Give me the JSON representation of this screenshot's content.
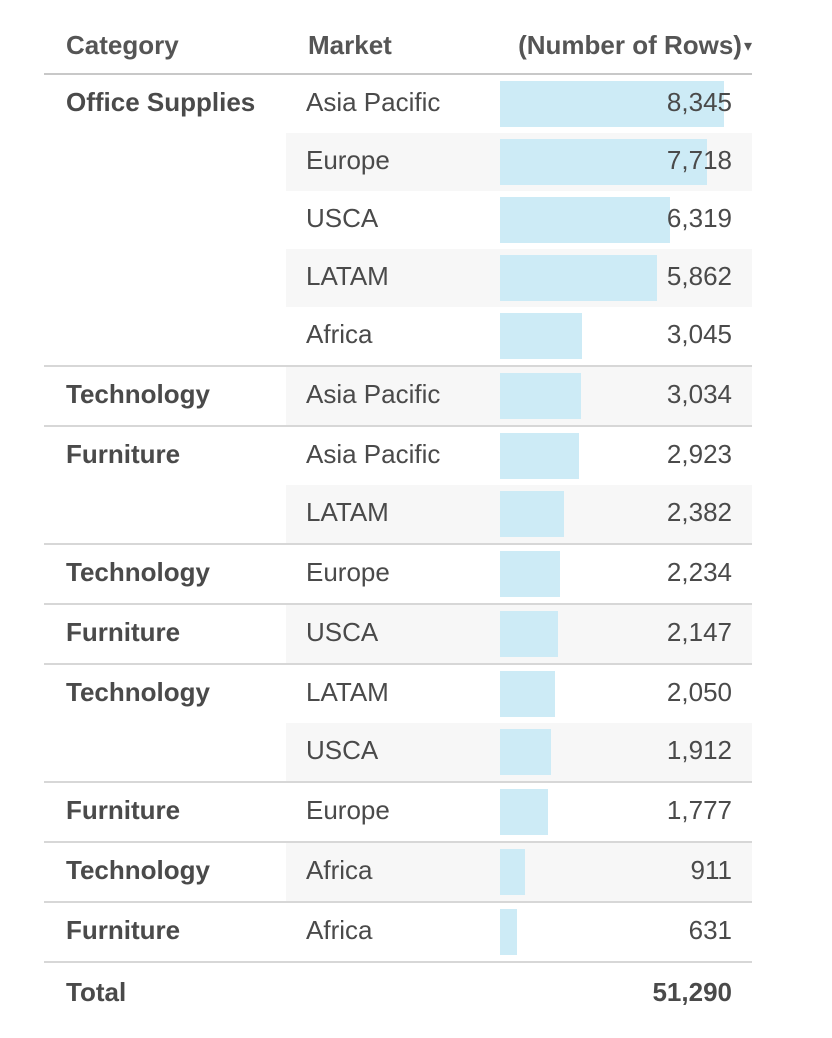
{
  "chart_data": {
    "type": "table",
    "columns": [
      "Category",
      "Market",
      "(Number of Rows)"
    ],
    "sort": "descending",
    "groups": [
      {
        "category": "Office Supplies",
        "rows": [
          {
            "market": "Asia Pacific",
            "value": 8345,
            "label": "8,345"
          },
          {
            "market": "Europe",
            "value": 7718,
            "label": "7,718"
          },
          {
            "market": "USCA",
            "value": 6319,
            "label": "6,319"
          },
          {
            "market": "LATAM",
            "value": 5862,
            "label": "5,862"
          },
          {
            "market": "Africa",
            "value": 3045,
            "label": "3,045"
          }
        ]
      },
      {
        "category": "Technology",
        "rows": [
          {
            "market": "Asia Pacific",
            "value": 3034,
            "label": "3,034"
          }
        ]
      },
      {
        "category": "Furniture",
        "rows": [
          {
            "market": "Asia Pacific",
            "value": 2923,
            "label": "2,923"
          },
          {
            "market": "LATAM",
            "value": 2382,
            "label": "2,382"
          }
        ]
      },
      {
        "category": "Technology",
        "rows": [
          {
            "market": "Europe",
            "value": 2234,
            "label": "2,234"
          }
        ]
      },
      {
        "category": "Furniture",
        "rows": [
          {
            "market": "USCA",
            "value": 2147,
            "label": "2,147"
          }
        ]
      },
      {
        "category": "Technology",
        "rows": [
          {
            "market": "LATAM",
            "value": 2050,
            "label": "2,050"
          },
          {
            "market": "USCA",
            "value": 1912,
            "label": "1,912"
          }
        ]
      },
      {
        "category": "Furniture",
        "rows": [
          {
            "market": "Europe",
            "value": 1777,
            "label": "1,777"
          }
        ]
      },
      {
        "category": "Technology",
        "rows": [
          {
            "market": "Africa",
            "value": 911,
            "label": "911"
          }
        ]
      },
      {
        "category": "Furniture",
        "rows": [
          {
            "market": "Africa",
            "value": 631,
            "label": "631"
          }
        ]
      }
    ],
    "total_label": "Total",
    "total_value": "51,290",
    "bar_color": "#cdebf6",
    "bar_max": 8345
  },
  "icons": {
    "sort": "sort-descending-icon"
  }
}
